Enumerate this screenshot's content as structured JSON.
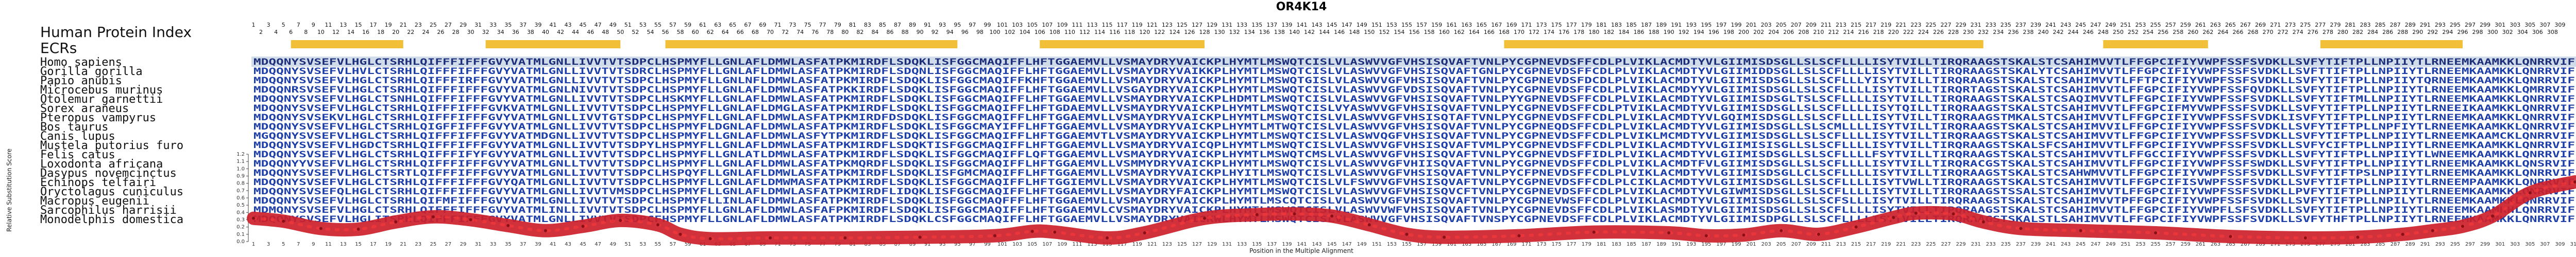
{
  "chart_data": {
    "type": "line",
    "title": "OR4K14",
    "header_label": "Human Protein Index",
    "ecr_label": "ECRs",
    "xlabel": "Position in the Multiple Alignment",
    "ylabel": "Relative Substitution Score",
    "ylim": [
      0,
      1.2
    ],
    "yticks": [
      0,
      0.1,
      0.2,
      0.3,
      0.4,
      0.5,
      0.6,
      0.7,
      0.8,
      0.9,
      1.0,
      1.1,
      1.2
    ],
    "x_range": [
      1,
      311
    ],
    "xticks_step": 2,
    "human_index_top_start": 1,
    "human_index_bottom_start": 2,
    "human_index_end": 309,
    "species": [
      "Homo sapiens",
      "Gorilla gorilla",
      "Papio anubis",
      "Microcebus murinus",
      "Otolemur garnettii",
      "Sorex araneus",
      "Pteropus vampyrus",
      "Bos taurus",
      "Canis lupus",
      "Mustela putorius furo",
      "Felis catus",
      "Loxodonta africana",
      "Dasypus novemcinctus",
      "Echinops telfairi",
      "Oryctolagus cuniculus",
      "Macropus eugenii",
      "Sarcophilus harrisii",
      "Monodelphis domestica"
    ],
    "sequence": "MDQQNYSVSEFVLHGLCTSRHLQIFFFIFFFGVYVATMLGNLLIVVTVTSDPCLHSPMYFLLGNLAFLDMWLASFATPKMIRDFLSDQKLISFGGCMAQIFFLHFTGGAEMVLLVSMAYDRYVAICKPLHYMTLMSWQTCISLVLASWVVGFVHSISQVAFTVNLPYCGPNEVDSFFCDLPLVIKLACMDTYVLGIIMISDSGLLSLSCFLLLLISYTVILLTIRQRAAGSTSKALSTCSAHIMVVTLFFGPCIFIYVWPFSSFSVDKLLSVFYTIFTPLLNPIIYTLRNEEMKAAMKKLQNRRVIF",
    "ecr_segments": [
      [
        6,
        21
      ],
      [
        32,
        50
      ],
      [
        56,
        95
      ],
      [
        106,
        128
      ],
      [
        168,
        232
      ],
      [
        248,
        262
      ],
      [
        277,
        296
      ]
    ],
    "series": [
      {
        "x": [
          1,
          5,
          10,
          15,
          20,
          25,
          30,
          35,
          40,
          45,
          50,
          55,
          58,
          62,
          70,
          80,
          90,
          100,
          105,
          108,
          115,
          120,
          128,
          135,
          140,
          145,
          150,
          155,
          160,
          170,
          180,
          190,
          195,
          200,
          205,
          210,
          215,
          220,
          223,
          228,
          232,
          237,
          245,
          255,
          265,
          275,
          282,
          288,
          292,
          296,
          300,
          305,
          311
        ],
        "y": [
          0.32,
          0.28,
          0.18,
          0.17,
          0.27,
          0.34,
          0.3,
          0.22,
          0.15,
          0.21,
          0.29,
          0.23,
          0.1,
          0.04,
          0.05,
          0.05,
          0.06,
          0.08,
          0.14,
          0.13,
          0.05,
          0.12,
          0.32,
          0.37,
          0.38,
          0.35,
          0.23,
          0.1,
          0.06,
          0.08,
          0.13,
          0.12,
          0.08,
          0.09,
          0.15,
          0.1,
          0.2,
          0.33,
          0.39,
          0.38,
          0.27,
          0.18,
          0.15,
          0.12,
          0.07,
          0.05,
          0.06,
          0.1,
          0.15,
          0.21,
          0.35,
          0.67,
          0.82
        ]
      }
    ]
  },
  "colors": {
    "curve": "#cc1f2a",
    "curve_highlight": "#ff3b3b",
    "ecr_bar": "#f2c038",
    "human_row": "#7a9bc4",
    "residue": "#1f3fa8",
    "residue_light": "#3c80d8",
    "background": "#ffffff"
  }
}
